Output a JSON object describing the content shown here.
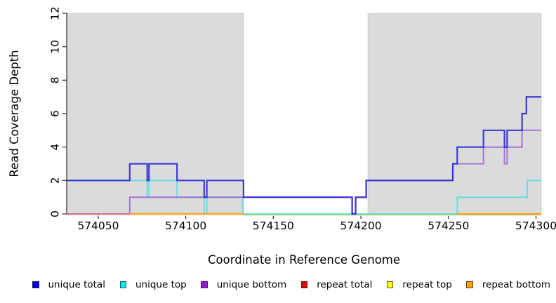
{
  "chart_data": {
    "type": "line",
    "step_interpolation": true,
    "title": "",
    "xlabel": "Coordinate in Reference Genome",
    "ylabel": "Read Coverage Depth",
    "xlim": [
      574032,
      574303
    ],
    "ylim": [
      0,
      12
    ],
    "xticks": [
      574050,
      574100,
      574150,
      574200,
      574250,
      574300
    ],
    "yticks": [
      0,
      2,
      4,
      6,
      8,
      10,
      12
    ],
    "grid": false,
    "legend_position": "bottom",
    "plot_background": "#ffffff",
    "shade_color": "#dbdbdb",
    "shaded_regions": [
      {
        "from": 574032,
        "to": 574133
      },
      {
        "from": 574204,
        "to": 574303
      }
    ],
    "series": [
      {
        "name": "unique total",
        "color": "#2929d1",
        "opacity": 0.9,
        "width": 2.2,
        "draw": true,
        "points": [
          [
            574032,
            2
          ],
          [
            574068,
            2
          ],
          [
            574068,
            3
          ],
          [
            574078,
            3
          ],
          [
            574078,
            2
          ],
          [
            574079,
            2
          ],
          [
            574079,
            3
          ],
          [
            574095,
            3
          ],
          [
            574095,
            2
          ],
          [
            574110.5,
            2
          ],
          [
            574110.5,
            1
          ],
          [
            574112,
            1
          ],
          [
            574112,
            2
          ],
          [
            574133,
            2
          ],
          [
            574133,
            1
          ],
          [
            574195,
            1
          ],
          [
            574195,
            0
          ],
          [
            574197,
            0
          ],
          [
            574197,
            1
          ],
          [
            574203,
            1
          ],
          [
            574203,
            2
          ],
          [
            574252.5,
            2
          ],
          [
            574252.5,
            3
          ],
          [
            574255,
            3
          ],
          [
            574255,
            4
          ],
          [
            574270,
            4
          ],
          [
            574270,
            5
          ],
          [
            574282,
            5
          ],
          [
            574282,
            4
          ],
          [
            574283.5,
            4
          ],
          [
            574283.5,
            5
          ],
          [
            574292,
            5
          ],
          [
            574292,
            6
          ],
          [
            574294.5,
            6
          ],
          [
            574294.5,
            7
          ],
          [
            574303,
            7
          ]
        ]
      },
      {
        "name": "unique top",
        "color": "#63dede",
        "opacity": 0.95,
        "width": 2,
        "draw": true,
        "points": [
          [
            574032,
            2
          ],
          [
            574078,
            2
          ],
          [
            574078,
            1
          ],
          [
            574079,
            1
          ],
          [
            574079,
            2
          ],
          [
            574095,
            2
          ],
          [
            574095,
            1
          ],
          [
            574110.5,
            1
          ],
          [
            574110.5,
            0
          ],
          [
            574112,
            0
          ],
          [
            574112,
            1
          ],
          [
            574132.5,
            1
          ],
          [
            574132.5,
            0
          ],
          [
            574255,
            0
          ],
          [
            574255,
            1
          ],
          [
            574295,
            1
          ],
          [
            574295,
            2
          ],
          [
            574303,
            2
          ]
        ]
      },
      {
        "name": "unique bottom",
        "color": "#9a63d6",
        "opacity": 0.85,
        "width": 2,
        "draw": true,
        "points": [
          [
            574032,
            0
          ],
          [
            574068,
            0
          ],
          [
            574068,
            1
          ],
          [
            574195,
            1
          ],
          [
            574195,
            0
          ],
          [
            574197,
            0
          ],
          [
            574197,
            1
          ],
          [
            574203,
            1
          ],
          [
            574203,
            2
          ],
          [
            574252.5,
            2
          ],
          [
            574252.5,
            3
          ],
          [
            574270,
            3
          ],
          [
            574270,
            4
          ],
          [
            574282,
            4
          ],
          [
            574282,
            3
          ],
          [
            574283.5,
            3
          ],
          [
            574283.5,
            4
          ],
          [
            574292,
            4
          ],
          [
            574292,
            5
          ],
          [
            574303,
            5
          ]
        ]
      },
      {
        "name": "repeat total",
        "color": "#e60000",
        "opacity": 1,
        "width": 1.8,
        "draw": false,
        "points": [
          [
            574032,
            0
          ],
          [
            574303,
            0
          ]
        ]
      },
      {
        "name": "repeat top",
        "color": "#ffff00",
        "opacity": 1,
        "width": 1.8,
        "draw": false,
        "points": [
          [
            574032,
            0
          ],
          [
            574303,
            0
          ]
        ]
      },
      {
        "name": "repeat bottom",
        "color": "#ffa200",
        "opacity": 1,
        "width": 1.8,
        "draw": false,
        "points": [
          [
            574032,
            0
          ],
          [
            574303,
            0
          ]
        ]
      }
    ],
    "zero_band_visuals": [
      {
        "from": 574032,
        "to": 574303,
        "color": "#efefc6",
        "dy": 2.2,
        "width": 1.3
      },
      {
        "from": 574133,
        "to": 574303,
        "color": "#8ccb8c",
        "dy": 0.9,
        "width": 1.5
      },
      {
        "from": 574032,
        "to": 574068,
        "color": "#d4699f",
        "dy": 0,
        "width": 1.8
      },
      {
        "from": 574068,
        "to": 574133,
        "color": "#ff9d1c",
        "dy": -0.1,
        "width": 2
      },
      {
        "from": 574255,
        "to": 574303,
        "color": "#ff9d1c",
        "dy": -0.1,
        "width": 2
      }
    ],
    "draw_order": [
      "unique top",
      "unique bottom",
      "@zero_band_visuals",
      "unique total"
    ]
  },
  "legend": {
    "items": [
      {
        "label": "unique total",
        "color": "#0000ee"
      },
      {
        "label": "unique top",
        "color": "#00eded"
      },
      {
        "label": "unique bottom",
        "color": "#9c17d8"
      },
      {
        "label": "repeat total",
        "color": "#e60000"
      },
      {
        "label": "repeat top",
        "color": "#ffff00"
      },
      {
        "label": "repeat bottom",
        "color": "#ffa200"
      }
    ]
  },
  "axis_style": {
    "tick_color": "#2b2b2b",
    "label_color": "#000000",
    "tick_font_size": 15.5
  }
}
